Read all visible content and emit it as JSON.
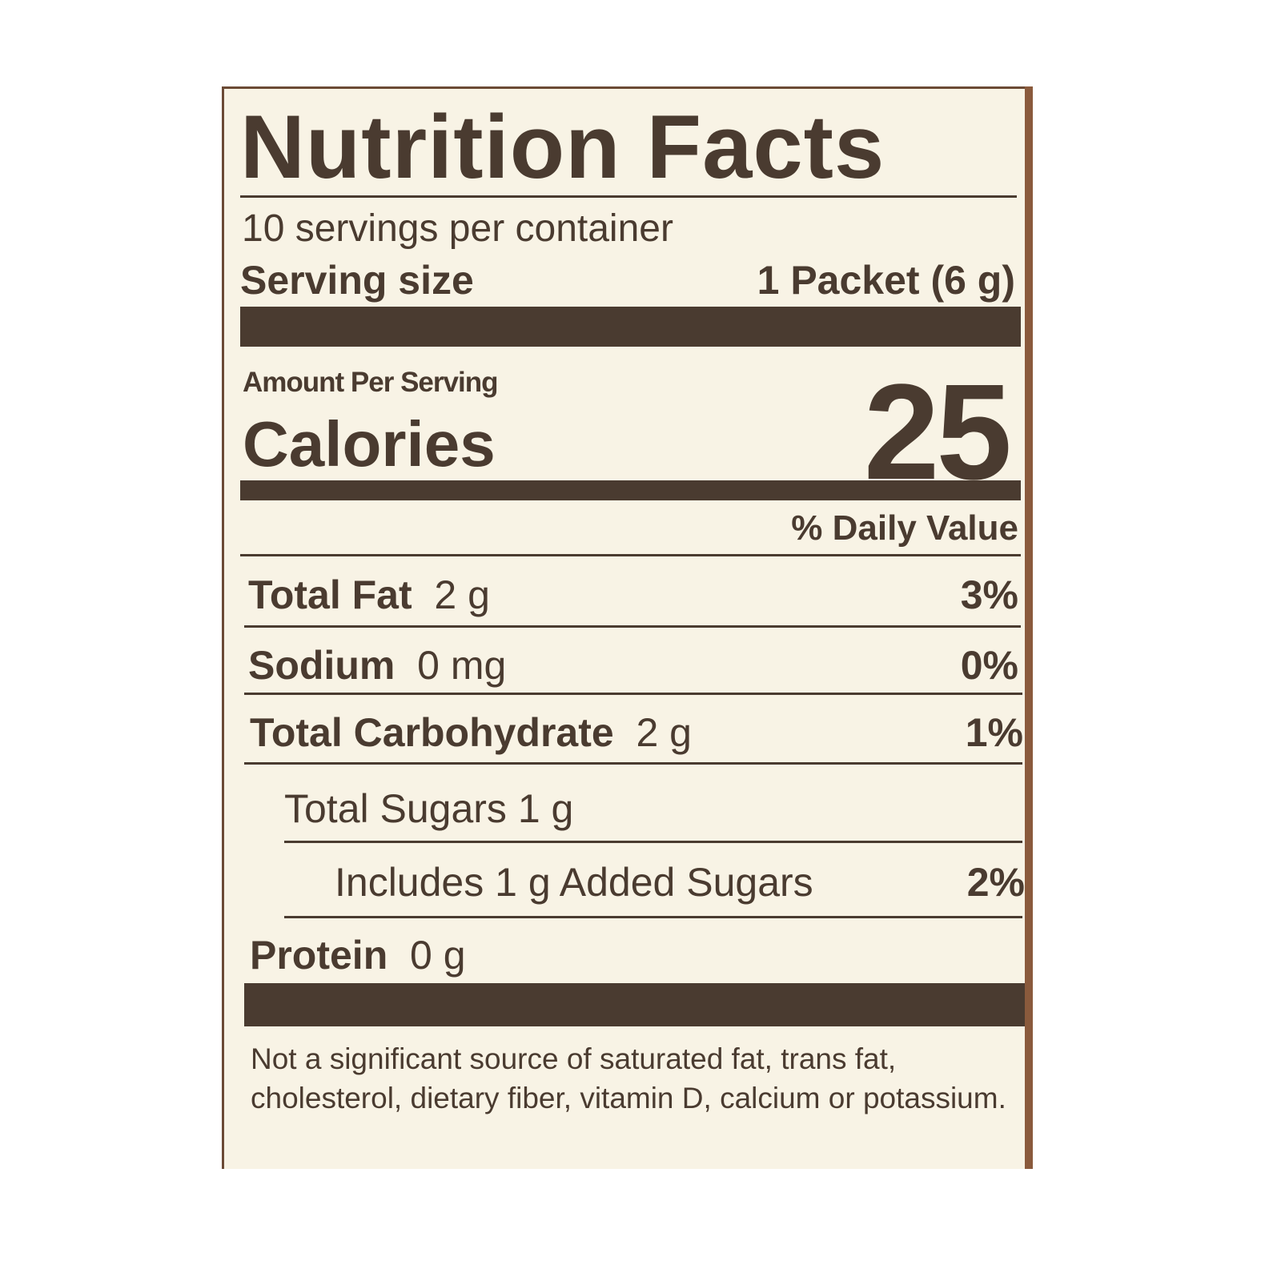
{
  "title": "Nutrition Facts",
  "servings_per_container": "10 servings per container",
  "serving_size": {
    "label": "Serving size",
    "value": "1 Packet (6 g)"
  },
  "amount_per_serving": "Amount Per Serving",
  "calories": {
    "label": "Calories",
    "value": "25"
  },
  "daily_value_header": "% Daily Value",
  "nutrients": [
    {
      "name": "Total Fat",
      "amount": "2 g",
      "dv": "3%"
    },
    {
      "name": "Sodium",
      "amount": "0 mg",
      "dv": "0%"
    },
    {
      "name": "Total Carbohydrate",
      "amount": "2 g",
      "dv": "1%"
    },
    {
      "name": "Total Sugars 1 g"
    },
    {
      "name": "Includes 1 g Added Sugars",
      "dv": "2%"
    },
    {
      "name": "Protein",
      "amount": "0 g"
    }
  ],
  "footnote": "Not a significant source of saturated fat, trans fat, cholesterol, dietary fiber, vitamin D, calcium or potassium.",
  "colors": {
    "ink": "#4a3b30",
    "paper": "#f8f3e5",
    "border": "#8a5a3c"
  }
}
